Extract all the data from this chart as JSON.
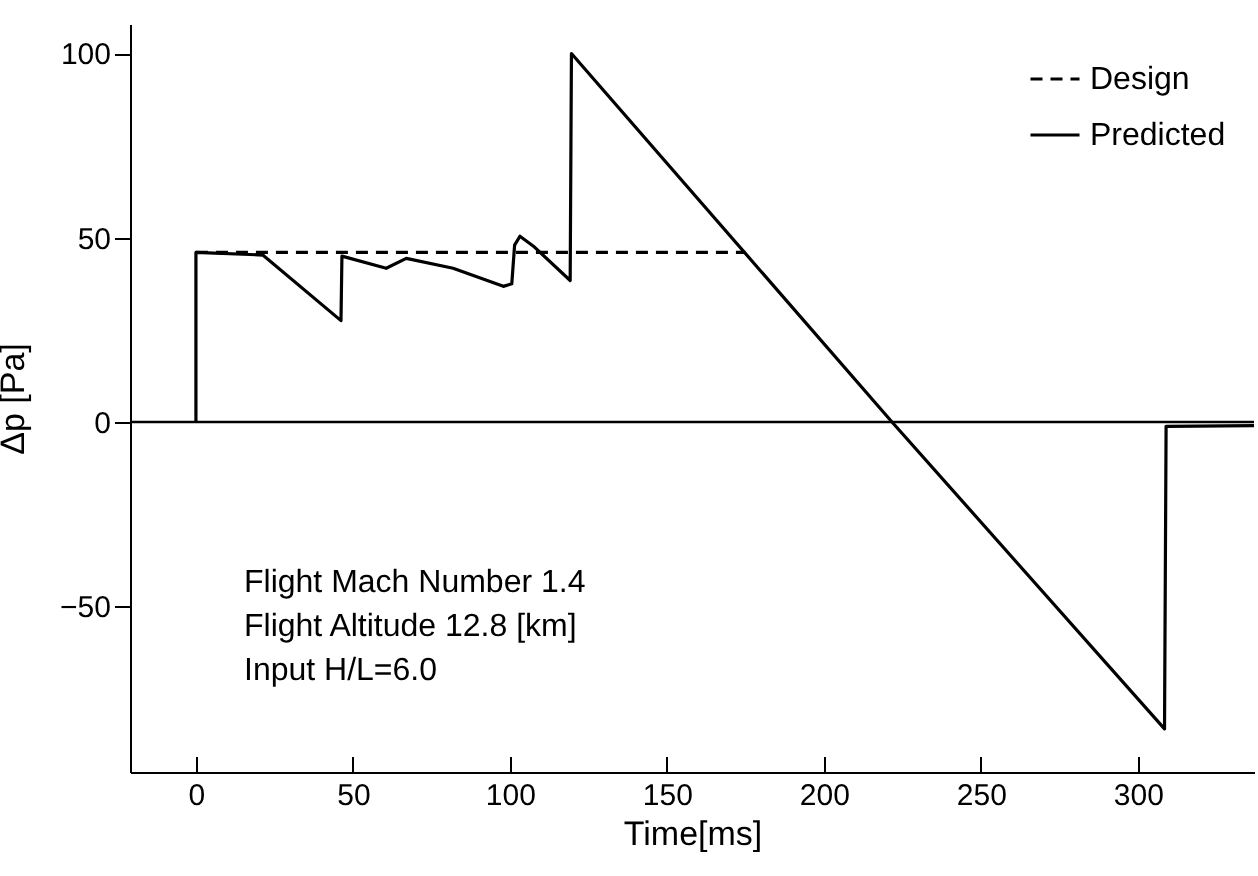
{
  "chart_data": {
    "type": "line",
    "xlabel": "Time[ms]",
    "ylabel": "Δp [Pa]",
    "xlim": [
      -21,
      337
    ],
    "ylim": [
      -95,
      108
    ],
    "xticks": [
      0,
      50,
      100,
      150,
      200,
      250,
      300
    ],
    "yticks": [
      -50,
      0,
      50,
      100
    ],
    "series": [
      {
        "name": "Design",
        "color": "#000000",
        "line_style": "dashed",
        "x": [
          0,
          175
        ],
        "values": [
          46,
          46
        ]
      },
      {
        "name": "Predicted",
        "color": "#000000",
        "line_style": "solid",
        "x": [
          0,
          0,
          21.3,
          46.2,
          46.5,
          60.6,
          67,
          81.9,
          97.9,
          100.6,
          101.5,
          103.2,
          107.5,
          119.2,
          119.6,
          221.7,
          308.5,
          309,
          337
        ],
        "values": [
          0,
          46,
          45.3,
          27.5,
          45,
          41.7,
          44.4,
          41.7,
          36.8,
          37.5,
          48,
          50.4,
          47.7,
          38.4,
          100,
          0,
          -83.3,
          -1.2,
          -1
        ]
      }
    ],
    "ref_lines": [
      {
        "axis": "y",
        "value": 0,
        "color": "#000000",
        "line_style": "solid"
      }
    ],
    "annotations": [
      "Flight Mach Number 1.4",
      "Flight Altitude 12.8 [km]",
      "Input H/L=6.0"
    ],
    "legend": "top right",
    "grid": false
  }
}
